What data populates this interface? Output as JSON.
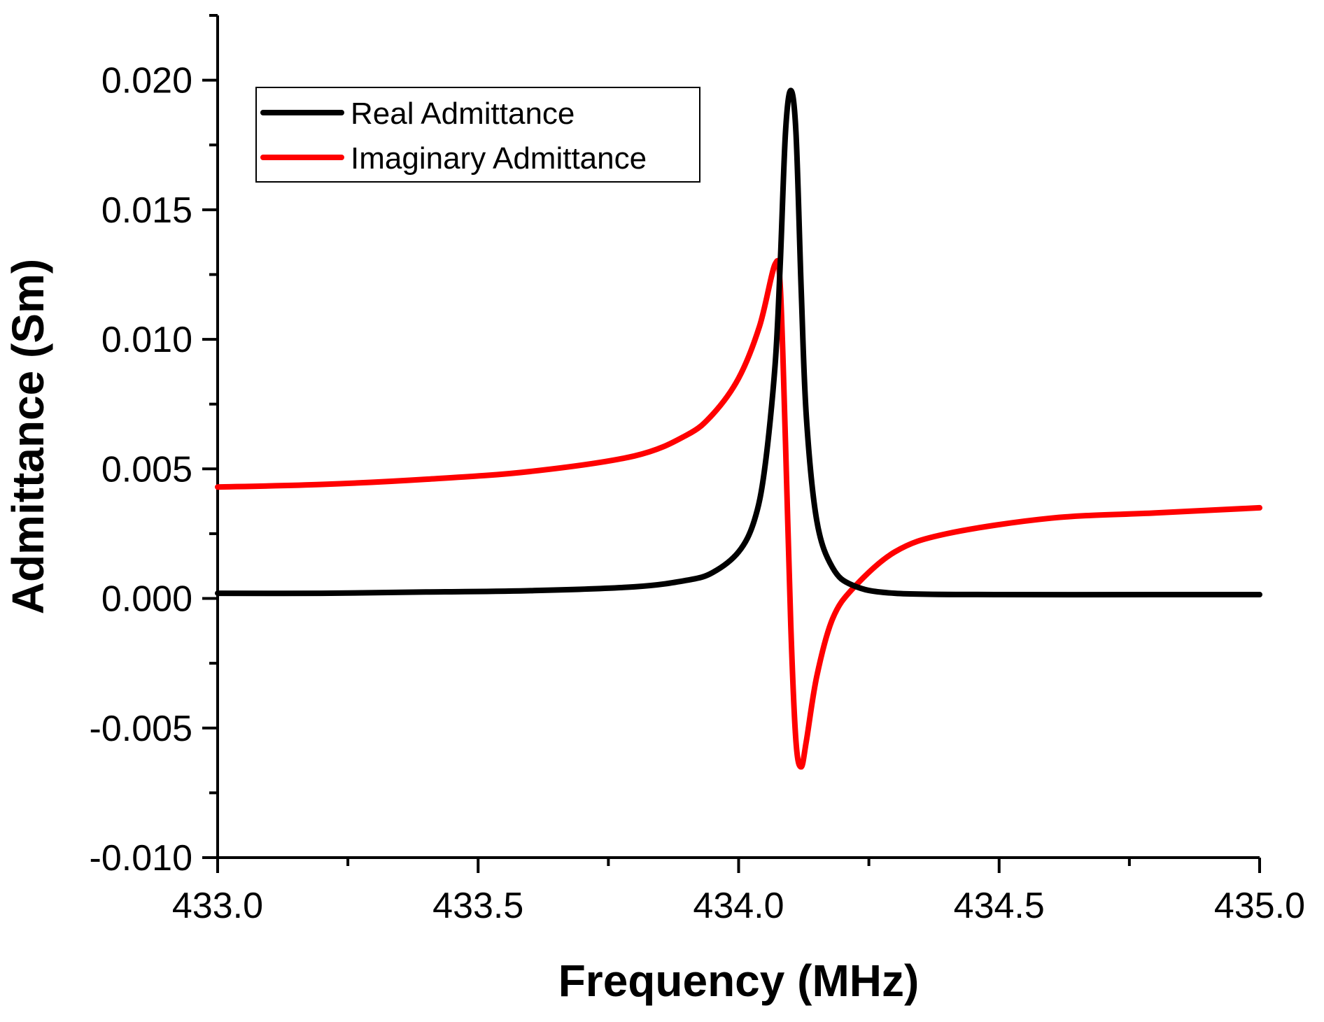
{
  "chart_data": {
    "type": "line",
    "title": "",
    "xlabel": "Frequency (MHz)",
    "ylabel": "Admittance (Sm)",
    "xlim": [
      433.0,
      435.0
    ],
    "ylim": [
      -0.01,
      0.0225
    ],
    "x_ticks": [
      433.0,
      433.5,
      434.0,
      434.5,
      435.0
    ],
    "x_tick_labels": [
      "433.0",
      "433.5",
      "434.0",
      "434.5",
      "435.0"
    ],
    "y_ticks": [
      -0.01,
      -0.005,
      0.0,
      0.005,
      0.01,
      0.015,
      0.02
    ],
    "y_tick_labels": [
      "-0.010",
      "-0.005",
      "0.000",
      "0.005",
      "0.010",
      "0.015",
      "0.020"
    ],
    "grid": false,
    "legend_position": "top-left",
    "series": [
      {
        "name": "Real Admittance",
        "color": "#000000",
        "x": [
          433.0,
          433.2,
          433.4,
          433.6,
          433.8,
          433.9,
          433.95,
          434.0,
          434.03,
          434.05,
          434.07,
          434.08,
          434.09,
          434.1,
          434.11,
          434.12,
          434.13,
          434.15,
          434.18,
          434.22,
          434.3,
          434.5,
          434.8,
          435.0
        ],
        "values": [
          0.0002,
          0.0002,
          0.00025,
          0.0003,
          0.00045,
          0.0007,
          0.001,
          0.0018,
          0.003,
          0.005,
          0.009,
          0.013,
          0.018,
          0.0196,
          0.018,
          0.012,
          0.007,
          0.003,
          0.0012,
          0.0005,
          0.0002,
          0.00015,
          0.00015,
          0.00015
        ]
      },
      {
        "name": "Imaginary Admittance",
        "color": "#ff0000",
        "x": [
          433.0,
          433.2,
          433.4,
          433.6,
          433.8,
          433.9,
          433.95,
          434.0,
          434.04,
          434.07,
          434.08,
          434.09,
          434.1,
          434.11,
          434.12,
          434.13,
          434.15,
          434.18,
          434.22,
          434.3,
          434.4,
          434.6,
          434.8,
          435.0
        ],
        "values": [
          0.0043,
          0.0044,
          0.0046,
          0.0049,
          0.0055,
          0.0063,
          0.0071,
          0.0085,
          0.0105,
          0.0129,
          0.012,
          0.006,
          -0.001,
          -0.0055,
          -0.0065,
          -0.0055,
          -0.003,
          -0.0008,
          0.0004,
          0.0018,
          0.0025,
          0.0031,
          0.0033,
          0.0035
        ]
      }
    ]
  }
}
